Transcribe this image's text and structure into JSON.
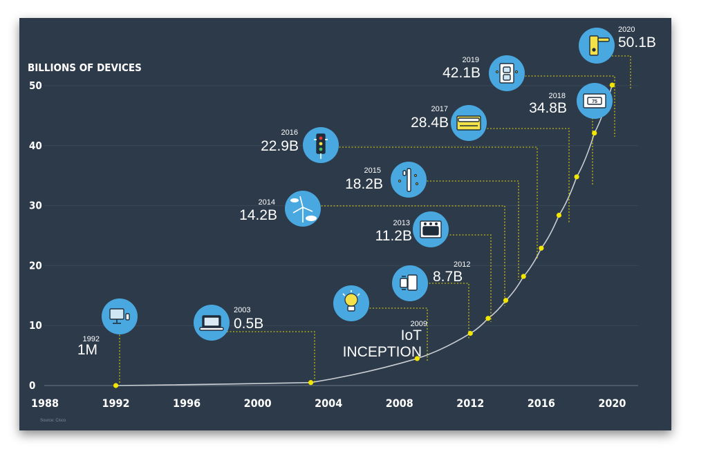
{
  "colors": {
    "background": "#2c3a4a",
    "axis_text": "#ffffff",
    "curve": "#c9ced3",
    "marker": "#f2e600",
    "leader": "#e6d800",
    "icon_circle": "#4aa8e0",
    "icon_stroke": "#1f2d3a"
  },
  "chart_data": {
    "type": "line",
    "title": "",
    "ylabel": "BILLIONS OF DEVICES",
    "xlabel": "",
    "source": "Source: Cisco",
    "xlim": [
      1988,
      2021
    ],
    "ylim": [
      0,
      50
    ],
    "x_ticks": [
      "1988",
      "1992",
      "1996",
      "2000",
      "2004",
      "2008",
      "2012",
      "2016",
      "2020"
    ],
    "y_ticks": [
      "0",
      "10",
      "20",
      "30",
      "40",
      "50"
    ],
    "grid": true,
    "series": [
      {
        "points": [
          {
            "x": 1992,
            "y": 0.001
          },
          {
            "x": 2003,
            "y": 0.5
          },
          {
            "x": 2009,
            "y": 4.5
          },
          {
            "x": 2012,
            "y": 8.7
          },
          {
            "x": 2013,
            "y": 11.2
          },
          {
            "x": 2014,
            "y": 14.2
          },
          {
            "x": 2015,
            "y": 18.2
          },
          {
            "x": 2016,
            "y": 22.9
          },
          {
            "x": 2017,
            "y": 28.4
          },
          {
            "x": 2018,
            "y": 34.8
          },
          {
            "x": 2019,
            "y": 42.1
          },
          {
            "x": 2020,
            "y": 50.1
          }
        ]
      }
    ],
    "annotations": [
      {
        "year": "1992",
        "value": "1M",
        "icon": "desktop-computer-icon"
      },
      {
        "year": "2003",
        "value": "0.5B",
        "icon": "laptop-icon"
      },
      {
        "year": "2009",
        "value": "IoT",
        "value2": "INCEPTION",
        "icon": "lightbulb-icon"
      },
      {
        "year": "2012",
        "value": "8.7B",
        "icon": "smartwatch-phone-icon"
      },
      {
        "year": "2013",
        "value": "11.2B",
        "icon": "oven-icon"
      },
      {
        "year": "2014",
        "value": "14.2B",
        "icon": "wind-turbine-icon"
      },
      {
        "year": "2015",
        "value": "18.2B",
        "icon": "street-light-icon"
      },
      {
        "year": "2016",
        "value": "22.9B",
        "icon": "traffic-light-icon"
      },
      {
        "year": "2017",
        "value": "28.4B",
        "icon": "credit-card-icon"
      },
      {
        "year": "2018",
        "value": "34.8B",
        "icon": "thermostat-icon"
      },
      {
        "year": "2019",
        "value": "42.1B",
        "icon": "smart-switch-icon"
      },
      {
        "year": "2020",
        "value": "50.1B",
        "icon": "smart-lock-icon"
      }
    ]
  }
}
